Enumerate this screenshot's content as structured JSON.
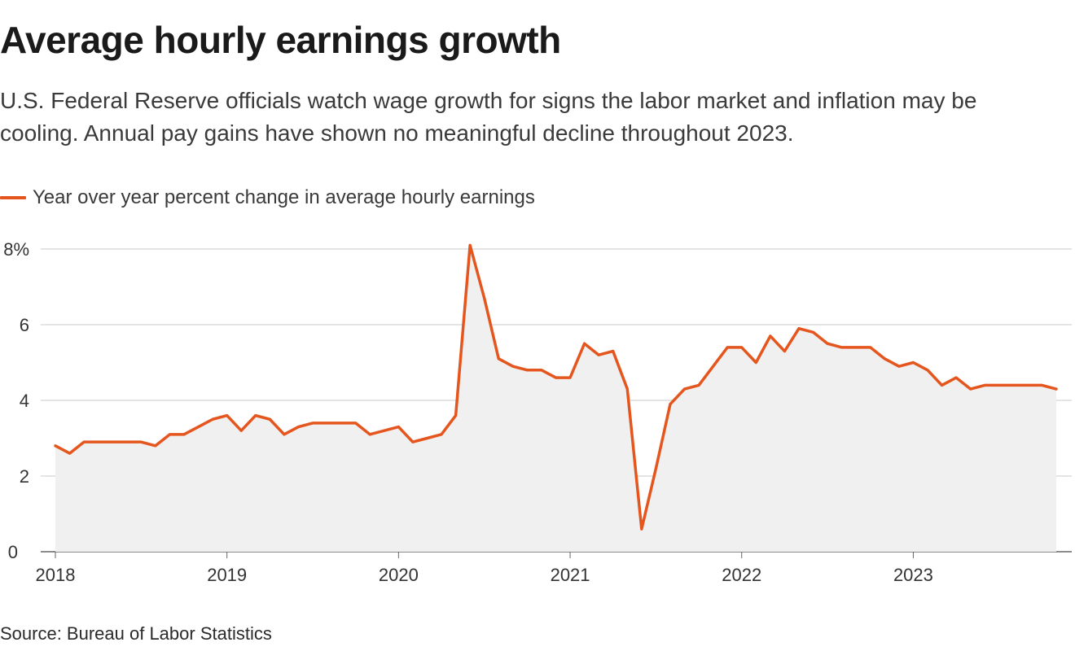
{
  "title": "Average hourly earnings growth",
  "subtitle": "U.S. Federal Reserve officials watch wage growth for signs the labor market and inflation may be cooling. Annual pay gains have shown no meaningful decline throughout 2023.",
  "source": "Source: Bureau of Labor Statistics",
  "colors": {
    "line": "#e5561e",
    "area": "#f0f0f0",
    "grid": "#c8c8c8",
    "axis": "#666666"
  },
  "chart_data": {
    "type": "line",
    "title": "Average hourly earnings growth",
    "xlabel": "",
    "ylabel": "",
    "ylim": [
      0,
      8
    ],
    "grid": true,
    "legend_position": "top-left",
    "x_ticks": [
      "2018",
      "2019",
      "2020",
      "2021",
      "2022",
      "2023"
    ],
    "y_ticks": [
      "0",
      "2",
      "4",
      "6",
      "8%"
    ],
    "x_start": "2018-01",
    "series": [
      {
        "name": "Year over year percent change in average hourly earnings",
        "values": [
          2.8,
          2.6,
          2.9,
          2.9,
          2.9,
          2.9,
          2.9,
          2.8,
          3.1,
          3.1,
          3.3,
          3.5,
          3.6,
          3.2,
          3.6,
          3.5,
          3.1,
          3.3,
          3.4,
          3.4,
          3.4,
          3.4,
          3.1,
          3.2,
          3.3,
          2.9,
          3.0,
          3.1,
          3.6,
          8.1,
          6.7,
          5.1,
          4.9,
          4.8,
          4.8,
          4.6,
          4.6,
          5.5,
          5.2,
          5.3,
          4.3,
          0.6,
          2.2,
          3.9,
          4.3,
          4.4,
          4.9,
          5.4,
          5.4,
          5.0,
          5.7,
          5.3,
          5.9,
          5.8,
          5.5,
          5.4,
          5.4,
          5.4,
          5.1,
          4.9,
          5.0,
          4.8,
          4.4,
          4.6,
          4.3,
          4.4,
          4.4,
          4.4,
          4.4,
          4.4,
          4.3
        ]
      }
    ]
  }
}
